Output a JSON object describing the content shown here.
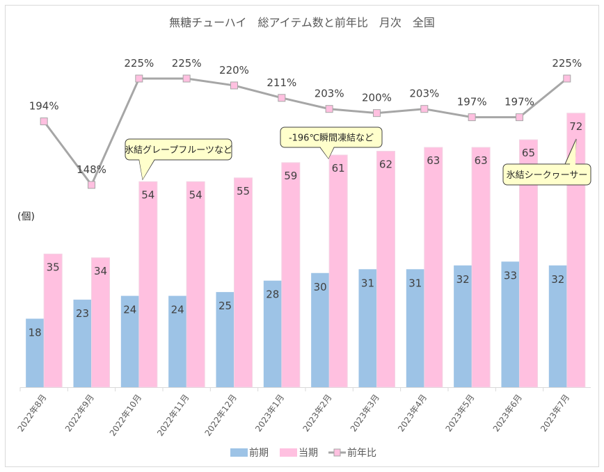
{
  "chart_data": {
    "type": "bar+line",
    "title": "無糖チューハイ　総アイテム数と前年比　月次　全国",
    "ylabel": "(個)",
    "categories": [
      "2022年8月",
      "2022年9月",
      "2022年10月",
      "2022年11月",
      "2022年12月",
      "2023年1月",
      "2023年2月",
      "2023年3月",
      "2023年4月",
      "2023年5月",
      "2023年6月",
      "2023年7月"
    ],
    "series": [
      {
        "name": "前期",
        "type": "bar",
        "color": "#9dc3e6",
        "values": [
          18,
          23,
          24,
          24,
          25,
          28,
          30,
          31,
          31,
          32,
          33,
          32
        ]
      },
      {
        "name": "当期",
        "type": "bar",
        "color": "#ffc0e0",
        "values": [
          35,
          34,
          54,
          54,
          55,
          59,
          61,
          62,
          63,
          63,
          65,
          72
        ]
      },
      {
        "name": "前年比",
        "type": "line",
        "color": "#a6a6a6",
        "marker_color": "#ffc0e0",
        "values": [
          194,
          148,
          225,
          225,
          220,
          211,
          203,
          200,
          203,
          197,
          197,
          225
        ],
        "labels": [
          "194%",
          "148%",
          "225%",
          "225%",
          "220%",
          "211%",
          "203%",
          "200%",
          "203%",
          "197%",
          "197%",
          "225%"
        ]
      }
    ],
    "legend": "bottom",
    "grid": false,
    "annotations": [
      {
        "text": "氷結グレープフルーツなど",
        "category": "2022年10月"
      },
      {
        "text": "-196℃瞬間凍結など",
        "category": "2023年2月"
      },
      {
        "text": "氷結シークヮーサー",
        "category": "2023年7月"
      }
    ]
  }
}
